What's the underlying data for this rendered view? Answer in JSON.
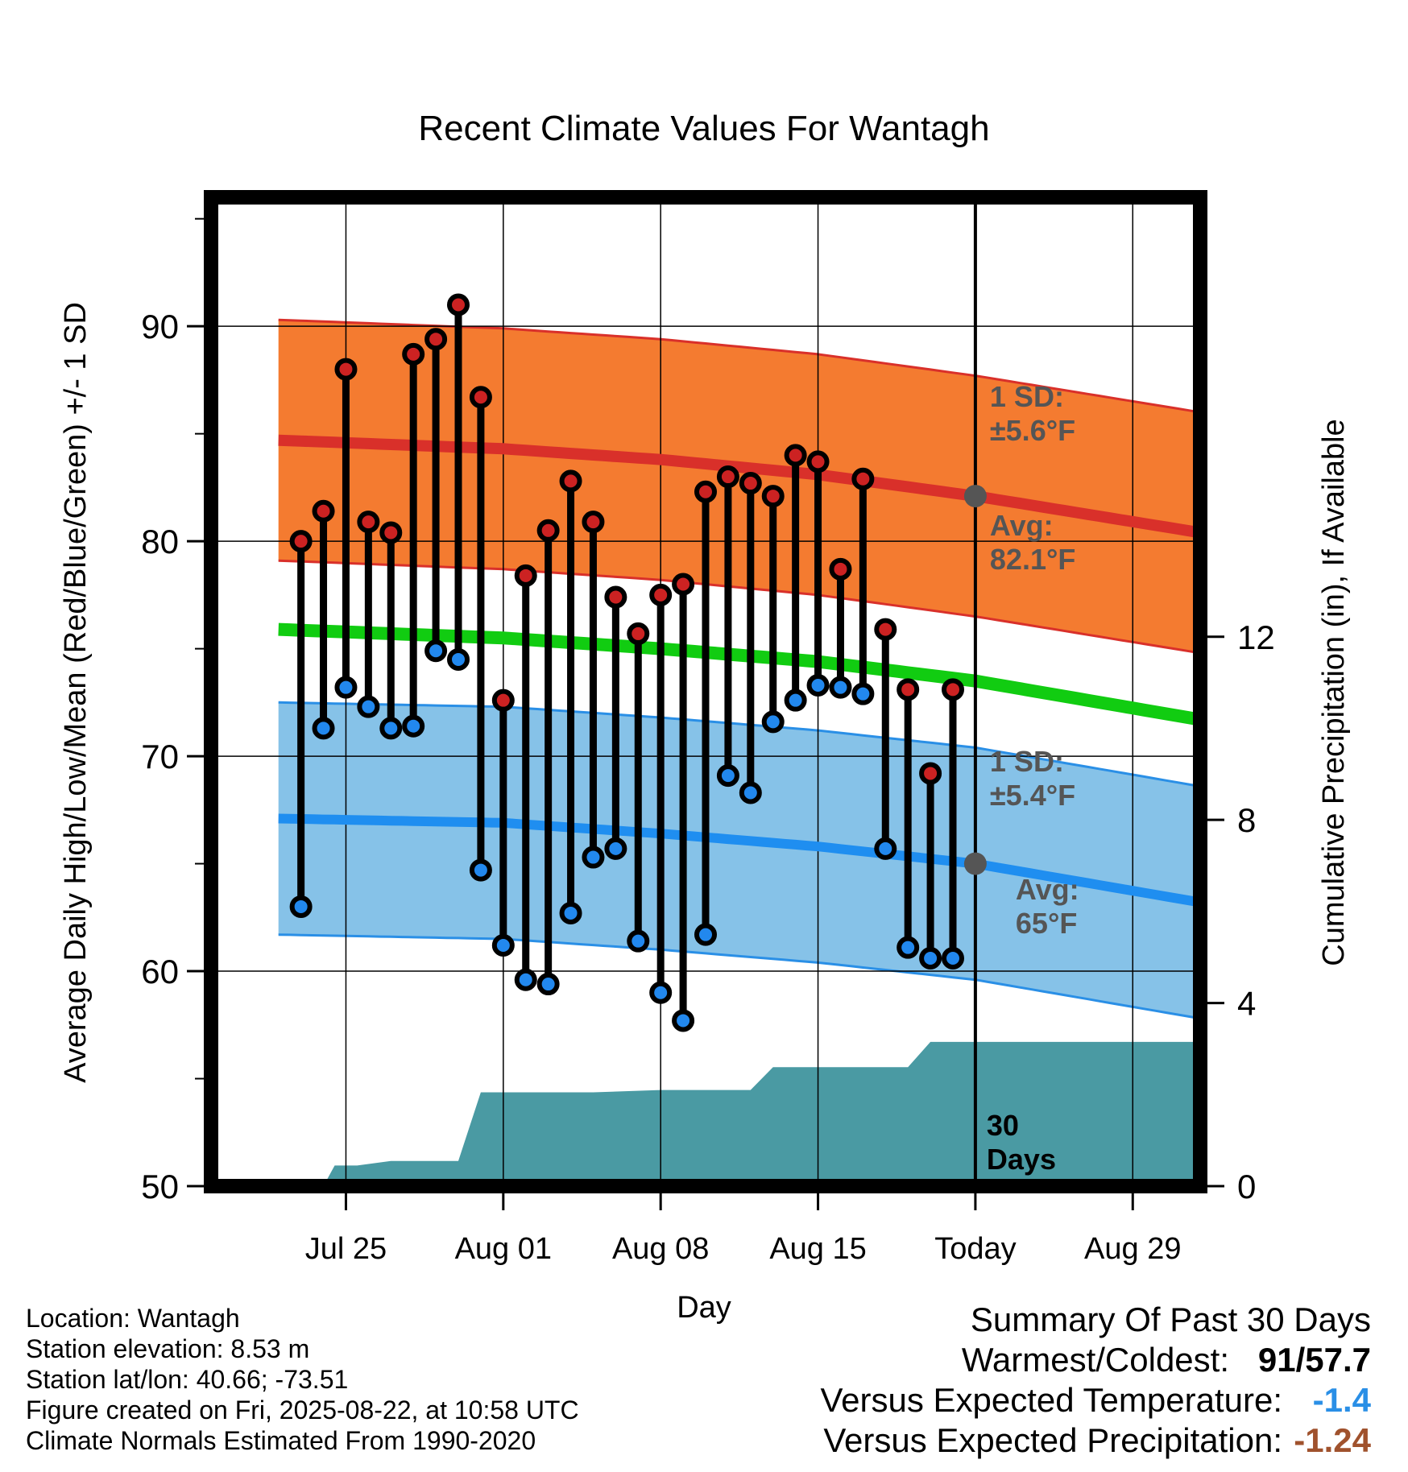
{
  "chart_data": {
    "type": "line",
    "title": "Recent Climate Values For Wantagh",
    "xlabel": "Day",
    "ylabel_left": "Average Daily High/Low/Mean (Red/Blue/Green) +/- 1 SD",
    "ylabel_right": "Cumulative Precipitation (in), If Available",
    "x_range_days": [
      -34,
      10
    ],
    "ylim_left": [
      50,
      96
    ],
    "ylim_right": [
      0,
      21.6
    ],
    "yticks_left": [
      {
        "value": 50,
        "label": "50"
      },
      {
        "value": 60,
        "label": "60"
      },
      {
        "value": 70,
        "label": "70"
      },
      {
        "value": 80,
        "label": "80"
      },
      {
        "value": 90,
        "label": "90"
      }
    ],
    "yticks_right": [
      {
        "value": 0,
        "label": "0"
      },
      {
        "value": 4,
        "label": "4"
      },
      {
        "value": 8,
        "label": "8"
      },
      {
        "value": 12,
        "label": "12"
      }
    ],
    "xticks": [
      {
        "day": -28,
        "label": "Jul 25"
      },
      {
        "day": -21,
        "label": "Aug 01"
      },
      {
        "day": -14,
        "label": "Aug 08"
      },
      {
        "day": -7,
        "label": "Aug 15"
      },
      {
        "day": 0,
        "label": "Today"
      },
      {
        "day": 7,
        "label": "Aug 29"
      }
    ],
    "grid": true,
    "today_day": 0,
    "normal_high": {
      "day": [
        -31,
        -21,
        -14,
        -7,
        0,
        10
      ],
      "avg": [
        84.7,
        84.3,
        83.8,
        83.1,
        82.1,
        80.4
      ],
      "sd": 5.6
    },
    "normal_low": {
      "day": [
        -31,
        -21,
        -14,
        -7,
        0,
        10
      ],
      "avg": [
        67.1,
        66.9,
        66.4,
        65.8,
        65.0,
        63.2
      ],
      "sd": 5.4
    },
    "normal_mean": {
      "day": [
        -31,
        -21,
        -14,
        -7,
        0,
        10
      ],
      "values": [
        75.9,
        75.5,
        75.0,
        74.4,
        73.5,
        71.7
      ]
    },
    "series": [
      {
        "name": "High",
        "color": "#cc2222",
        "values": [
          80.0,
          81.4,
          88.0,
          80.9,
          80.4,
          88.7,
          89.4,
          91.0,
          86.7,
          72.6,
          78.4,
          80.5,
          82.8,
          80.9,
          77.4,
          75.7,
          77.5,
          78.0,
          82.3,
          83.0,
          82.7,
          82.1,
          84.0,
          83.7,
          78.7,
          82.9,
          75.9,
          73.1,
          69.2,
          73.1
        ]
      },
      {
        "name": "Low",
        "color": "#2288ee",
        "values": [
          63.0,
          71.3,
          73.2,
          72.3,
          71.3,
          71.4,
          74.9,
          74.5,
          64.7,
          61.2,
          59.6,
          59.4,
          62.7,
          65.3,
          65.7,
          61.4,
          59.0,
          57.7,
          61.7,
          69.1,
          68.3,
          71.6,
          72.6,
          73.3,
          73.2,
          72.9,
          65.7,
          61.1,
          60.6,
          60.6
        ]
      }
    ],
    "obs_days": [
      -30,
      -29,
      -28,
      -27,
      -26,
      -25,
      -24,
      -23,
      -22,
      -21,
      -20,
      -19,
      -18,
      -17,
      -16,
      -15,
      -14,
      -13,
      -12,
      -11,
      -10,
      -9,
      -8,
      -7,
      -6,
      -5,
      -4,
      -3,
      -2,
      -1
    ],
    "precip": {
      "day": [
        -31,
        -29,
        -28.5,
        -27.5,
        -26,
        -24,
        -23,
        -22,
        -17,
        -14,
        -10,
        -9,
        -8,
        -5,
        -3,
        -2,
        -1,
        10
      ],
      "values": [
        0,
        0,
        0.45,
        0.45,
        0.55,
        0.55,
        0.55,
        2.05,
        2.05,
        2.1,
        2.1,
        2.6,
        2.6,
        2.6,
        2.6,
        3.15,
        3.15,
        3.15
      ]
    },
    "annotations": {
      "high_sd": [
        "1 SD:",
        "±5.6°F"
      ],
      "high_avg": [
        "Avg:",
        "82.1°F"
      ],
      "low_sd": [
        "1 SD:",
        "±5.4°F"
      ],
      "low_avg": [
        "Avg:",
        "65°F"
      ],
      "period": [
        "30",
        "Days"
      ]
    }
  },
  "footer": {
    "location": "Location: Wantagh",
    "elevation": "Station elevation: 8.53 m",
    "latlon": "Station lat/lon: 40.66; -73.51",
    "created": "Figure created on Fri, 2025-08-22, at 10:58 UTC",
    "normals": "Climate Normals Estimated From 1990-2020"
  },
  "summary": {
    "title": "Summary Of Past 30 Days",
    "warmest_label": "Warmest/Coldest:",
    "warmest_value": "91",
    "coldest_value": "57.7",
    "temp_label": "Versus Expected Temperature:",
    "temp_value": "-1.4",
    "temp_color": "#2a8fe6",
    "precip_label": "Versus Expected Precipitation:",
    "precip_value": "-1.24",
    "precip_color": "#a0522d"
  }
}
